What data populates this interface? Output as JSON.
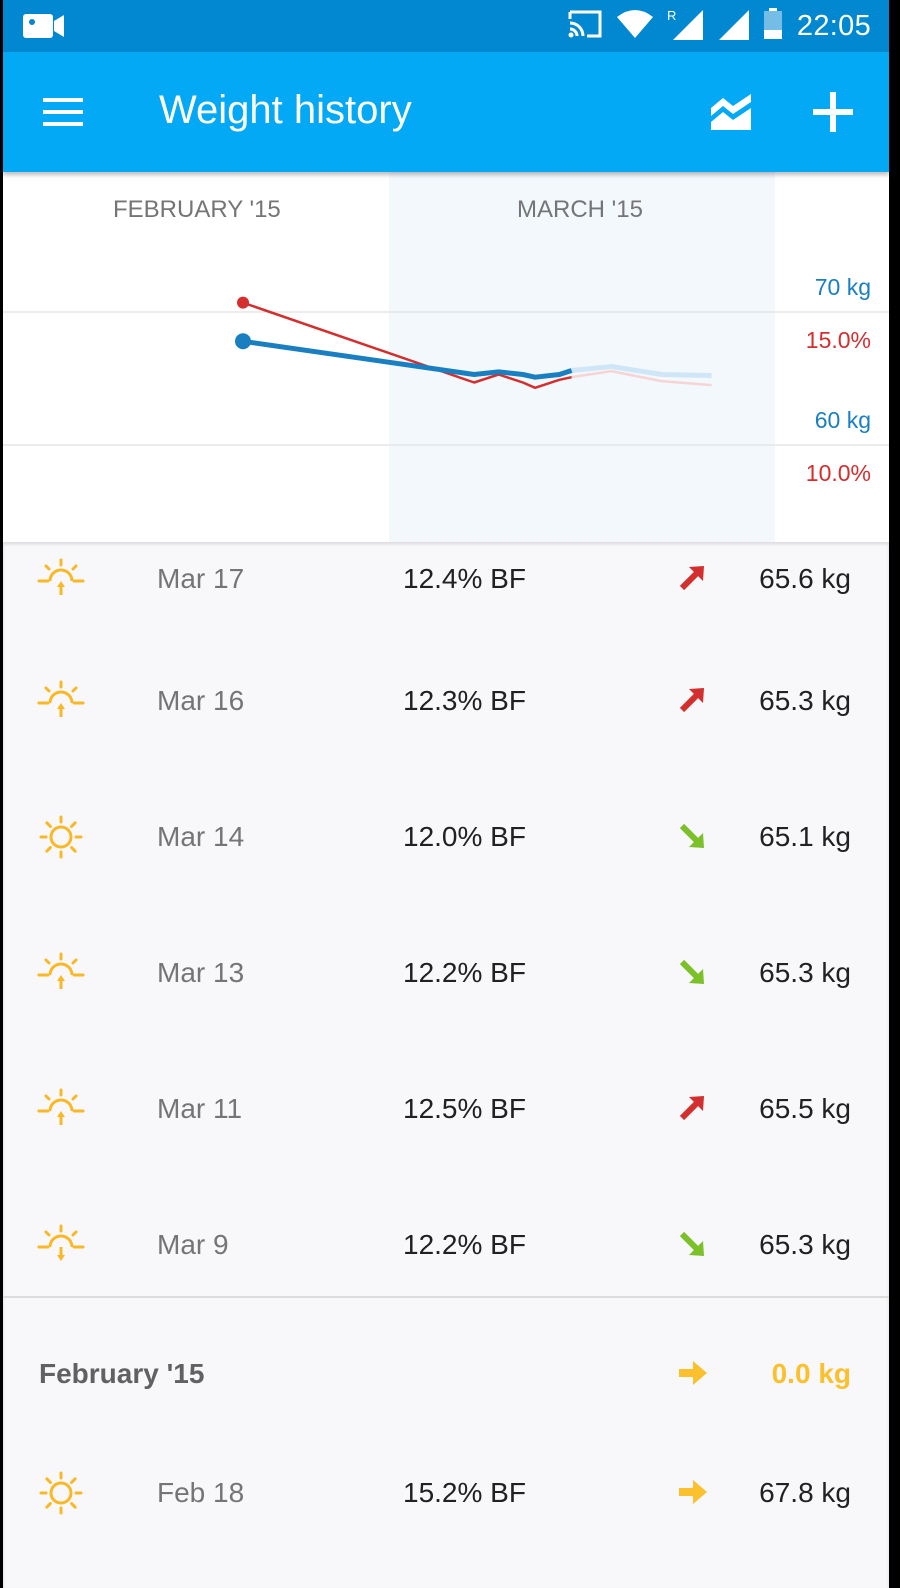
{
  "status_bar": {
    "time": "22:05",
    "roaming": "R"
  },
  "app_bar": {
    "title": "Weight history"
  },
  "chart": {
    "months": [
      "FEBRUARY '15",
      "MARCH '15"
    ],
    "axis_labels": {
      "kg_high": "70 kg",
      "pct_high": "15.0%",
      "kg_low": "60 kg",
      "pct_low": "10.0%"
    },
    "colors": {
      "weight": "#1a7fc1",
      "bodyfat": "#d32f2f",
      "highlight": "#f3f8fd"
    }
  },
  "chart_data": {
    "type": "line",
    "series": [
      {
        "values_kg": [
          {
            "date": "Feb 18",
            "y": 67.8
          },
          {
            "date": "Mar 9",
            "y": 65.3
          },
          {
            "date": "Mar 11",
            "y": 65.5
          },
          {
            "date": "Mar 13",
            "y": 65.3
          },
          {
            "date": "Mar 14",
            "y": 65.1
          },
          {
            "date": "Mar 16",
            "y": 65.3
          },
          {
            "date": "Mar 17",
            "y": 65.6
          }
        ]
      },
      {
        "values_pct": [
          {
            "date": "Feb 18",
            "y": 15.2
          },
          {
            "date": "Mar 9",
            "y": 12.2
          },
          {
            "date": "Mar 11",
            "y": 12.5
          },
          {
            "date": "Mar 13",
            "y": 12.2
          },
          {
            "date": "Mar 14",
            "y": 12.0
          },
          {
            "date": "Mar 16",
            "y": 12.3
          },
          {
            "date": "Mar 17",
            "y": 12.4
          }
        ]
      }
    ],
    "y_ticks_kg": [
      60,
      70
    ],
    "y_ticks_pct": [
      10.0,
      15.0
    ],
    "grid": true
  },
  "entries": [
    {
      "date": "Mar 17",
      "bf": "12.4% BF",
      "weight": "65.6 kg",
      "icon": "sunrise-icon",
      "trend": "up"
    },
    {
      "date": "Mar 16",
      "bf": "12.3% BF",
      "weight": "65.3 kg",
      "icon": "sunrise-icon",
      "trend": "up"
    },
    {
      "date": "Mar 14",
      "bf": "12.0% BF",
      "weight": "65.1 kg",
      "icon": "sun-icon",
      "trend": "down"
    },
    {
      "date": "Mar 13",
      "bf": "12.2% BF",
      "weight": "65.3 kg",
      "icon": "sunrise-icon",
      "trend": "down"
    },
    {
      "date": "Mar 11",
      "bf": "12.5% BF",
      "weight": "65.5 kg",
      "icon": "sunrise-icon",
      "trend": "up"
    },
    {
      "date": "Mar 9",
      "bf": "12.2% BF",
      "weight": "65.3 kg",
      "icon": "sunset-icon",
      "trend": "down"
    }
  ],
  "section": {
    "title": "February '15",
    "change": "0.0 kg",
    "trend": "flat"
  },
  "feb_entries": [
    {
      "date": "Feb 18",
      "bf": "15.2% BF",
      "weight": "67.8 kg",
      "icon": "sun-icon",
      "trend": "flat"
    }
  ],
  "trend_colors": {
    "up": "#d32f2f",
    "down": "#7cc12a",
    "flat": "#fbc02d"
  },
  "icon_color": "#f9b825"
}
